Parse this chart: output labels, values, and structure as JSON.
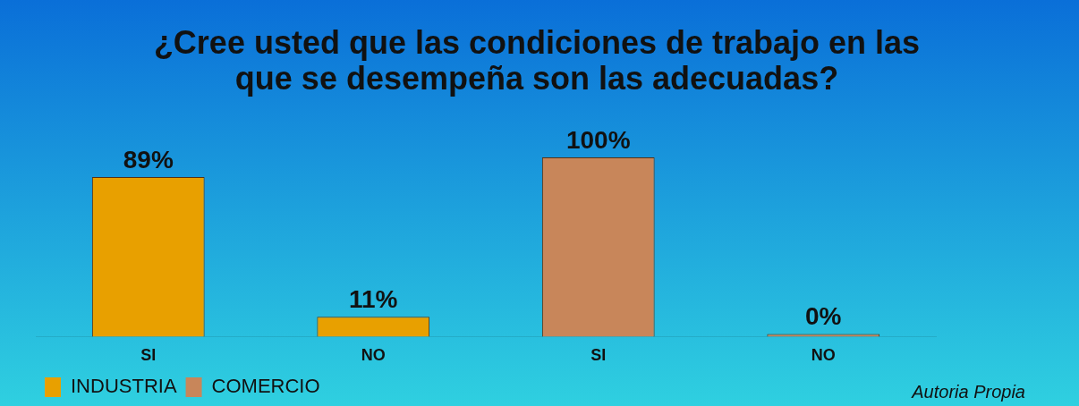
{
  "chart_data": {
    "type": "bar",
    "title": "¿Cree usted que las condiciones de trabajo en las que se desempeña son las adecuadas?",
    "categories": [
      "SI",
      "NO",
      "SI",
      "NO"
    ],
    "series": [
      {
        "name": "INDUSTRIA",
        "color": "#e8a000",
        "values": [
          89,
          11,
          null,
          null
        ],
        "value_labels": [
          "89%",
          "11%",
          null,
          null
        ]
      },
      {
        "name": "COMERCIO",
        "color": "#c8865a",
        "values": [
          null,
          null,
          100,
          0
        ],
        "value_labels": [
          null,
          null,
          "100%",
          "0%"
        ]
      }
    ],
    "grid": false,
    "legend": "bottom left",
    "annotations": [
      "Autoria Propia"
    ]
  }
}
